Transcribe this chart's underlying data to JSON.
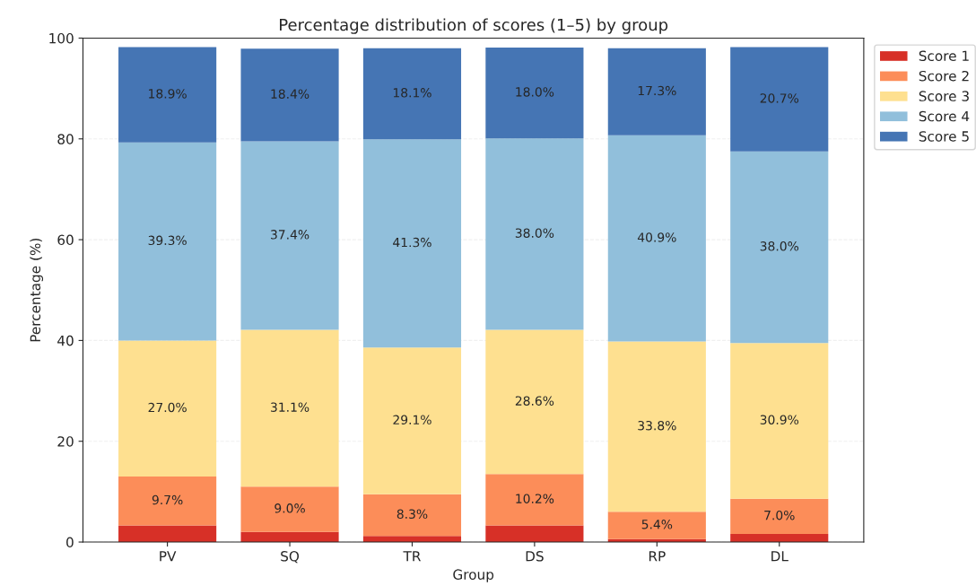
{
  "chart_data": {
    "type": "bar",
    "stacked": true,
    "title": "Percentage distribution of scores (1–5) by group",
    "xlabel": "Group",
    "ylabel": "Percentage (%)",
    "categories": [
      "PV",
      "SQ",
      "TR",
      "DS",
      "RP",
      "DL"
    ],
    "series": [
      {
        "name": "Score 1",
        "color": "#d73027",
        "values": [
          3.3,
          2.0,
          1.2,
          3.3,
          0.6,
          1.6
        ],
        "value_labels": [
          null,
          null,
          null,
          null,
          null,
          null
        ]
      },
      {
        "name": "Score 2",
        "color": "#fc8d59",
        "values": [
          9.7,
          9.0,
          8.3,
          10.2,
          5.4,
          7.0
        ],
        "value_labels": [
          "9.7%",
          "9.0%",
          "8.3%",
          "10.2%",
          "5.4%",
          "7.0%"
        ]
      },
      {
        "name": "Score 3",
        "color": "#fee090",
        "values": [
          27.0,
          31.1,
          29.1,
          28.6,
          33.8,
          30.9
        ],
        "value_labels": [
          "27.0%",
          "31.1%",
          "29.1%",
          "28.6%",
          "33.8%",
          "30.9%"
        ]
      },
      {
        "name": "Score 4",
        "color": "#91bfdb",
        "values": [
          39.3,
          37.4,
          41.3,
          38.0,
          40.9,
          38.0
        ],
        "value_labels": [
          "39.3%",
          "37.4%",
          "41.3%",
          "38.0%",
          "40.9%",
          "38.0%"
        ]
      },
      {
        "name": "Score 5",
        "color": "#4575b4",
        "values": [
          18.9,
          18.4,
          18.1,
          18.0,
          17.3,
          20.7
        ],
        "value_labels": [
          "18.9%",
          "18.4%",
          "18.1%",
          "18.0%",
          "17.3%",
          "20.7%"
        ]
      }
    ],
    "ylim": [
      0,
      100
    ],
    "yticks": [
      0,
      20,
      40,
      60,
      80,
      100
    ],
    "grid": "y",
    "legend": "top right"
  }
}
